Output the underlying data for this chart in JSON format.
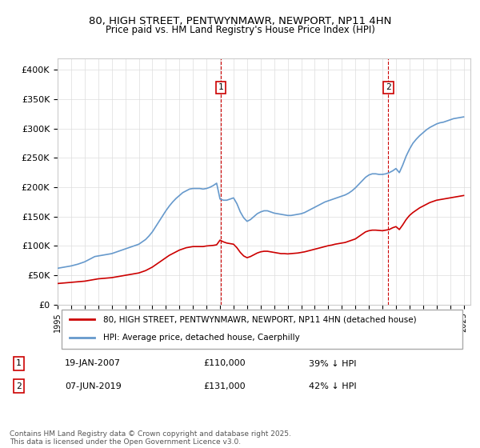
{
  "title_line1": "80, HIGH STREET, PENTWYNMAWR, NEWPORT, NP11 4HN",
  "title_line2": "Price paid vs. HM Land Registry's House Price Index (HPI)",
  "ylabel": "",
  "ylim": [
    0,
    420000
  ],
  "yticks": [
    0,
    50000,
    100000,
    150000,
    200000,
    250000,
    300000,
    350000,
    400000
  ],
  "ytick_labels": [
    "£0",
    "£50K",
    "£100K",
    "£150K",
    "£200K",
    "£250K",
    "£300K",
    "£350K",
    "£400K"
  ],
  "sale1_date": "19-JAN-2007",
  "sale1_price": 110000,
  "sale1_pct": "39% ↓ HPI",
  "sale1_year": 2007.05,
  "sale2_date": "07-JUN-2019",
  "sale2_price": 131000,
  "sale2_pct": "42% ↓ HPI",
  "sale2_year": 2019.44,
  "red_line_color": "#cc0000",
  "blue_line_color": "#6699cc",
  "vline_color": "#cc0000",
  "legend_label_red": "80, HIGH STREET, PENTWYNMAWR, NEWPORT, NP11 4HN (detached house)",
  "legend_label_blue": "HPI: Average price, detached house, Caerphilly",
  "footnote": "Contains HM Land Registry data © Crown copyright and database right 2025.\nThis data is licensed under the Open Government Licence v3.0.",
  "background_color": "#ffffff",
  "hpi_years": [
    1995,
    1995.25,
    1995.5,
    1995.75,
    1996,
    1996.25,
    1996.5,
    1996.75,
    1997,
    1997.25,
    1997.5,
    1997.75,
    1998,
    1998.25,
    1998.5,
    1998.75,
    1999,
    1999.25,
    1999.5,
    1999.75,
    2000,
    2000.25,
    2000.5,
    2000.75,
    2001,
    2001.25,
    2001.5,
    2001.75,
    2002,
    2002.25,
    2002.5,
    2002.75,
    2003,
    2003.25,
    2003.5,
    2003.75,
    2004,
    2004.25,
    2004.5,
    2004.75,
    2005,
    2005.25,
    2005.5,
    2005.75,
    2006,
    2006.25,
    2006.5,
    2006.75,
    2007,
    2007.25,
    2007.5,
    2007.75,
    2008,
    2008.25,
    2008.5,
    2008.75,
    2009,
    2009.25,
    2009.5,
    2009.75,
    2010,
    2010.25,
    2010.5,
    2010.75,
    2011,
    2011.25,
    2011.5,
    2011.75,
    2012,
    2012.25,
    2012.5,
    2012.75,
    2013,
    2013.25,
    2013.5,
    2013.75,
    2014,
    2014.25,
    2014.5,
    2014.75,
    2015,
    2015.25,
    2015.5,
    2015.75,
    2016,
    2016.25,
    2016.5,
    2016.75,
    2017,
    2017.25,
    2017.5,
    2017.75,
    2018,
    2018.25,
    2018.5,
    2018.75,
    2019,
    2019.25,
    2019.5,
    2019.75,
    2020,
    2020.25,
    2020.5,
    2020.75,
    2021,
    2021.25,
    2021.5,
    2021.75,
    2022,
    2022.25,
    2022.5,
    2022.75,
    2023,
    2023.25,
    2023.5,
    2023.75,
    2024,
    2024.25,
    2024.5,
    2024.75,
    2025
  ],
  "hpi_values": [
    62000,
    63000,
    64000,
    65000,
    66000,
    67500,
    69000,
    71000,
    73000,
    76000,
    79000,
    82000,
    83000,
    84000,
    85000,
    86000,
    87000,
    89000,
    91000,
    93000,
    95000,
    97000,
    99000,
    101000,
    103000,
    107000,
    111000,
    117000,
    124000,
    133000,
    142000,
    151000,
    160000,
    168000,
    175000,
    181000,
    186000,
    191000,
    194000,
    197000,
    198000,
    198000,
    198000,
    197000,
    198000,
    200000,
    203000,
    207000,
    180000,
    178000,
    178000,
    180000,
    182000,
    172000,
    158000,
    148000,
    142000,
    145000,
    150000,
    155000,
    158000,
    160000,
    160000,
    158000,
    156000,
    155000,
    154000,
    153000,
    152000,
    152000,
    153000,
    154000,
    155000,
    157000,
    160000,
    163000,
    166000,
    169000,
    172000,
    175000,
    177000,
    179000,
    181000,
    183000,
    185000,
    187000,
    190000,
    194000,
    199000,
    205000,
    211000,
    217000,
    221000,
    223000,
    223000,
    222000,
    222000,
    223000,
    225000,
    228000,
    232000,
    225000,
    238000,
    253000,
    265000,
    275000,
    282000,
    288000,
    293000,
    298000,
    302000,
    305000,
    308000,
    310000,
    311000,
    313000,
    315000,
    317000,
    318000,
    319000,
    320000
  ],
  "red_years": [
    1995,
    1995.25,
    1995.5,
    1995.75,
    1996,
    1996.25,
    1996.5,
    1996.75,
    1997,
    1997.25,
    1997.5,
    1997.75,
    1998,
    1998.25,
    1998.5,
    1998.75,
    1999,
    1999.25,
    1999.5,
    1999.75,
    2000,
    2000.25,
    2000.5,
    2000.75,
    2001,
    2001.25,
    2001.5,
    2001.75,
    2002,
    2002.25,
    2002.5,
    2002.75,
    2003,
    2003.25,
    2003.5,
    2003.75,
    2004,
    2004.25,
    2004.5,
    2004.75,
    2005,
    2005.25,
    2005.5,
    2005.75,
    2006,
    2006.25,
    2006.5,
    2006.75,
    2007,
    2007.25,
    2007.5,
    2007.75,
    2008,
    2008.25,
    2008.5,
    2008.75,
    2009,
    2009.25,
    2009.5,
    2009.75,
    2010,
    2010.25,
    2010.5,
    2010.75,
    2011,
    2011.25,
    2011.5,
    2011.75,
    2012,
    2012.25,
    2012.5,
    2012.75,
    2013,
    2013.25,
    2013.5,
    2013.75,
    2014,
    2014.25,
    2014.5,
    2014.75,
    2015,
    2015.25,
    2015.5,
    2015.75,
    2016,
    2016.25,
    2016.5,
    2016.75,
    2017,
    2017.25,
    2017.5,
    2017.75,
    2018,
    2018.25,
    2018.5,
    2018.75,
    2019,
    2019.25,
    2019.5,
    2019.75,
    2020,
    2020.25,
    2020.5,
    2020.75,
    2021,
    2021.25,
    2021.5,
    2021.75,
    2022,
    2022.25,
    2022.5,
    2022.75,
    2023,
    2023.25,
    2023.5,
    2023.75,
    2024,
    2024.25,
    2024.5,
    2024.75,
    2025
  ],
  "red_values": [
    36000,
    36500,
    37000,
    37500,
    38000,
    38500,
    39000,
    39500,
    40000,
    41000,
    42000,
    43000,
    44000,
    44500,
    45000,
    45500,
    46000,
    47000,
    48000,
    49000,
    50000,
    51000,
    52000,
    53000,
    54000,
    56000,
    58000,
    61000,
    64000,
    68000,
    72000,
    76000,
    80000,
    84000,
    87000,
    90000,
    93000,
    95000,
    97000,
    98000,
    99000,
    99000,
    99000,
    99000,
    100000,
    100500,
    101000,
    102000,
    110000,
    107000,
    105000,
    104000,
    103000,
    97000,
    89000,
    83000,
    80000,
    82000,
    85000,
    88000,
    90000,
    91000,
    91000,
    90000,
    89000,
    88000,
    87000,
    87000,
    86500,
    87000,
    87500,
    88000,
    89000,
    90000,
    91500,
    93000,
    94500,
    96000,
    97500,
    99000,
    100500,
    101500,
    103000,
    104000,
    105000,
    106000,
    108000,
    110000,
    112000,
    116000,
    120000,
    124000,
    126000,
    127000,
    127000,
    126500,
    126000,
    127000,
    128000,
    131000,
    133000,
    128000,
    136000,
    145000,
    152000,
    157000,
    161000,
    165000,
    168000,
    171000,
    174000,
    176000,
    178000,
    179000,
    180000,
    181000,
    182000,
    183000,
    184000,
    185000,
    186000
  ]
}
